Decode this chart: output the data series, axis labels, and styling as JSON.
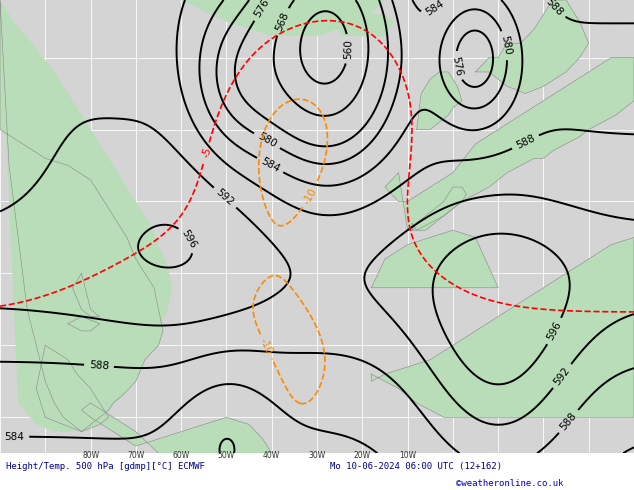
{
  "title_left": "Height/Temp. 500 hPa [gdmp][°C] ECMWF",
  "title_right": "Mo 10-06-2024 06:00 UTC (12+162)",
  "copyright": "©weatheronline.co.uk",
  "ocean_color": "#d4d4d4",
  "land_color": "#b8ddb8",
  "land_border_color": "#888888",
  "grid_color": "#ffffff",
  "contour_color_height": "#000000",
  "contour_color_temp_neg": "#ff0000",
  "contour_color_temp_pos": "#ff8800",
  "figsize": [
    6.34,
    4.9
  ],
  "dpi": 100,
  "lon_min": -100,
  "lon_max": 40,
  "lat_min": 5,
  "lat_max": 68
}
